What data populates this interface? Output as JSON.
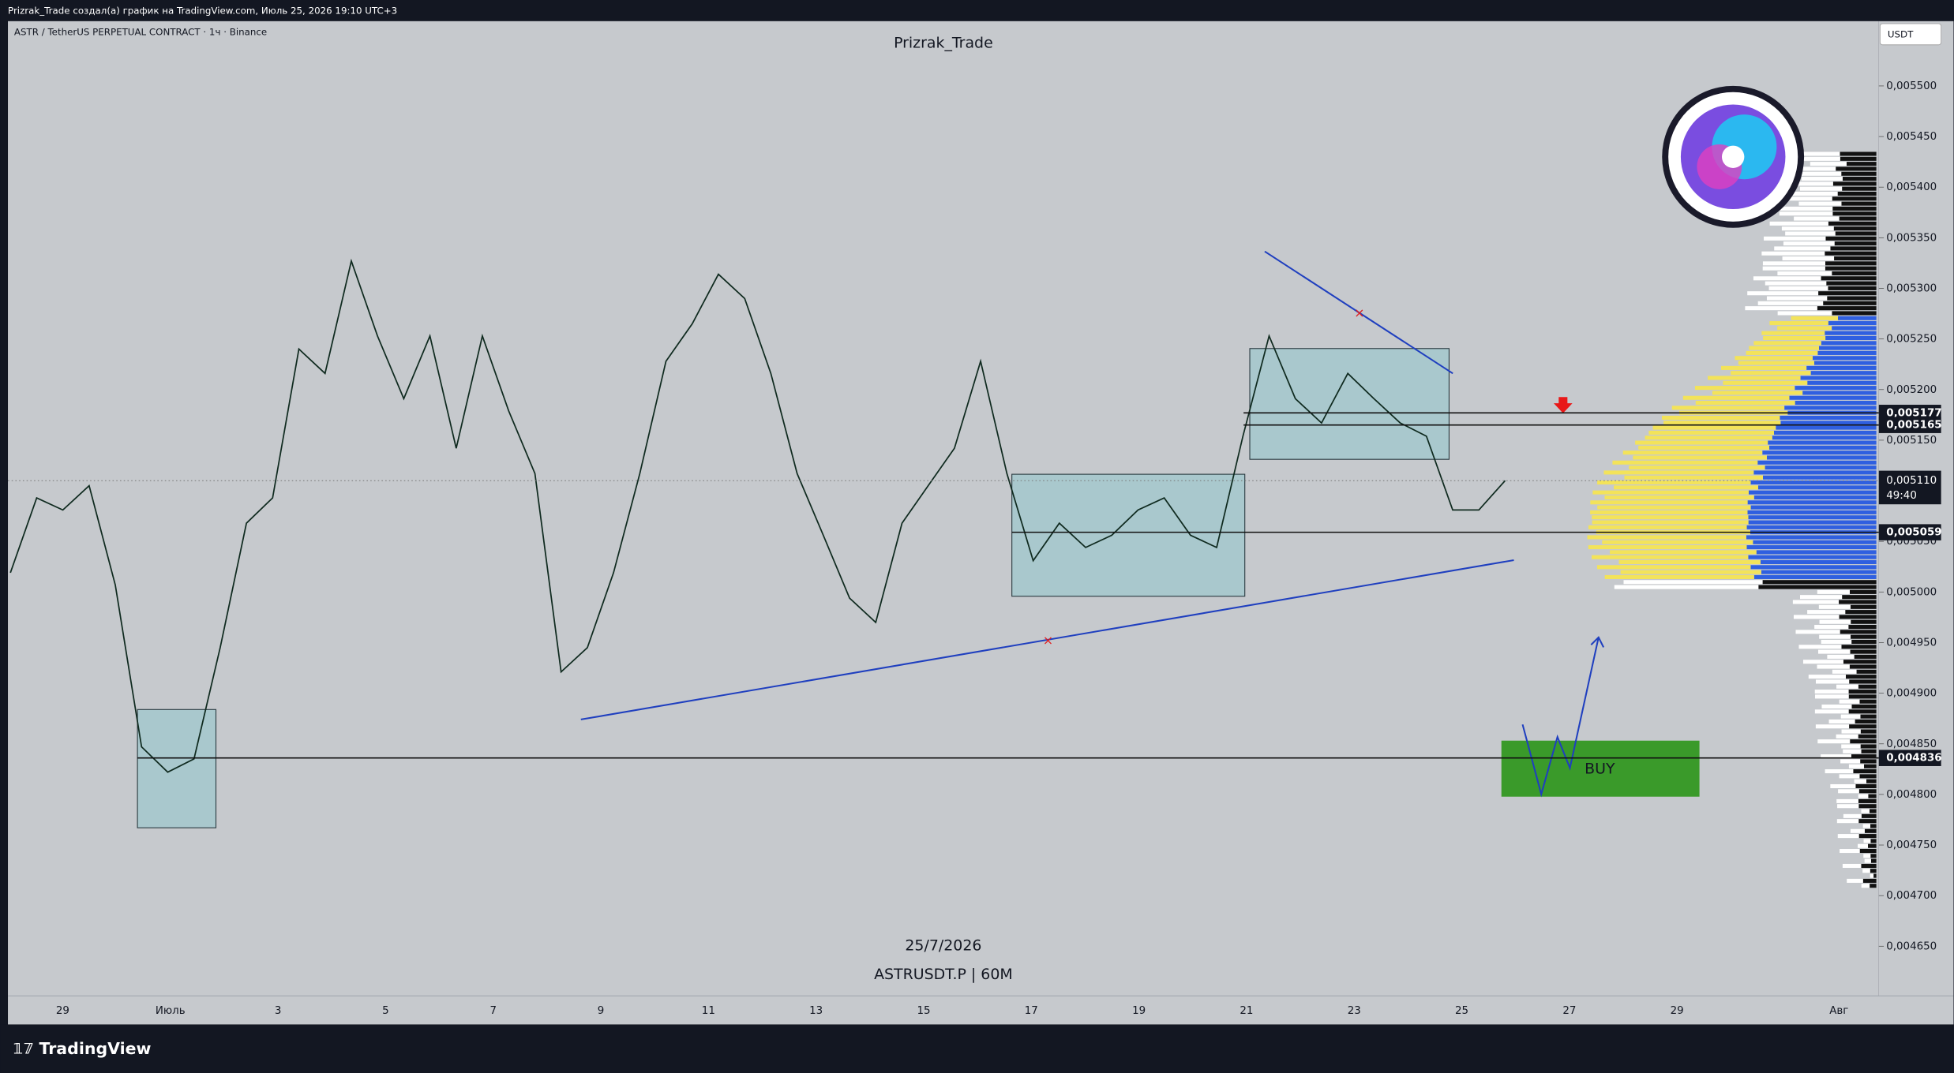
{
  "header": {
    "author_line": "Prizrak_Trade создал(а) график на TradingView.com, Июль 25, 2026 19:10 UTC+3"
  },
  "chart": {
    "symbol_line": "ASTR / TetherUS PERPETUAL CONTRACT · 1ч · Binance",
    "currency": "USDT",
    "watermark_title": "Prizrak_Trade",
    "watermark_date": "25/7/2026",
    "watermark_symbol": "ASTRUSDT.P | 60M",
    "buy_label": "BUY",
    "ylim": [
      0.004601,
      0.005564
    ],
    "yticks": [
      {
        "value": 0.00465,
        "label": "0,004650"
      },
      {
        "value": 0.0047,
        "label": "0,004700"
      },
      {
        "value": 0.00475,
        "label": "0,004750"
      },
      {
        "value": 0.0048,
        "label": "0,004800"
      },
      {
        "value": 0.00485,
        "label": "0,004850"
      },
      {
        "value": 0.0049,
        "label": "0,004900"
      },
      {
        "value": 0.00495,
        "label": "0,004950"
      },
      {
        "value": 0.005,
        "label": "0,005000"
      },
      {
        "value": 0.00505,
        "label": "0,005050"
      },
      {
        "value": 0.0051,
        "label": "0,005100"
      },
      {
        "value": 0.00515,
        "label": "0,005150"
      },
      {
        "value": 0.0052,
        "label": "0,005200"
      },
      {
        "value": 0.00525,
        "label": "0,005250"
      },
      {
        "value": 0.0053,
        "label": "0,005300"
      },
      {
        "value": 0.00535,
        "label": "0,005350"
      },
      {
        "value": 0.0054,
        "label": "0,005400"
      },
      {
        "value": 0.00545,
        "label": "0,005450"
      },
      {
        "value": 0.0055,
        "label": "0,005500"
      }
    ],
    "levels": [
      {
        "value": 0.005177,
        "label": "0,005177"
      },
      {
        "value": 0.005165,
        "label": "0,005165"
      },
      {
        "value": 0.005059,
        "label": "0,005059"
      },
      {
        "value": 0.004836,
        "label": "0,004836"
      }
    ],
    "current_price": {
      "value": 0.00511,
      "label": "0,005110"
    },
    "countdown": "49:40",
    "date_labels": [
      "29",
      "Июль",
      "3",
      "5",
      "7",
      "9",
      "11",
      "13",
      "15",
      "17",
      "19",
      "21",
      "23",
      "25",
      "27",
      "29",
      "Авг"
    ],
    "price_series": {
      "values": [
        0.005019,
        0.005093,
        0.005081,
        0.005105,
        0.005007,
        0.004847,
        0.004822,
        0.004835,
        0.004945,
        0.005068,
        0.005093,
        0.00524,
        0.005216,
        0.005327,
        0.005253,
        0.005191,
        0.005253,
        0.005142,
        0.005253,
        0.005179,
        0.005117,
        0.004921,
        0.004945,
        0.005019,
        0.005117,
        0.005228,
        0.005265,
        0.005314,
        0.00529,
        0.005216,
        0.005117,
        0.005056,
        0.004994,
        0.00497,
        0.005068,
        0.005105,
        0.005142,
        0.005228,
        0.005117,
        0.005031,
        0.005068,
        0.005044,
        0.005056,
        0.005081,
        0.005093,
        0.005056,
        0.005044,
        0.005154,
        0.005253,
        0.005191,
        0.005167,
        0.005216,
        0.005191,
        0.005167,
        0.005154,
        0.005081,
        0.005081,
        0.00511
      ]
    }
  },
  "footer": {
    "brand": "TradingView"
  }
}
